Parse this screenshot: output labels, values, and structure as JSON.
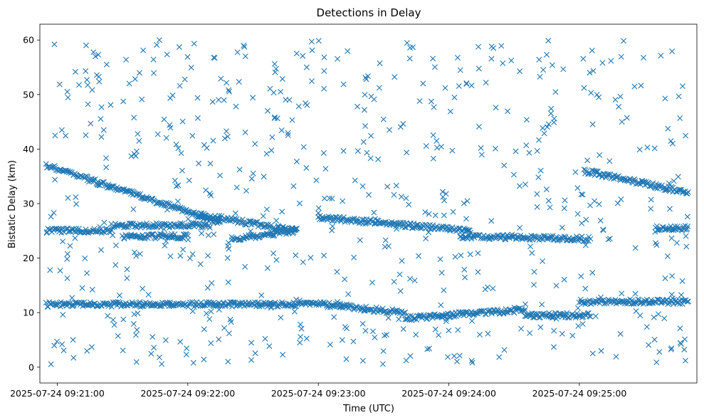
{
  "chart_data": {
    "type": "scatter",
    "title": "Detections in Delay",
    "xlabel": "Time (UTC)",
    "ylabel": "Bistatic Delay (km)",
    "marker": "x",
    "color": "#1f77b4",
    "grid": false,
    "legend": "none",
    "xlim": [
      "2025-07-24 09:20:52",
      "2025-07-24 09:25:54"
    ],
    "ylim": [
      -2.9,
      62.9
    ],
    "x_ticks": [
      "2025-07-24 09:21:00",
      "2025-07-24 09:22:00",
      "2025-07-24 09:23:00",
      "2025-07-24 09:24:00",
      "2025-07-24 09:25:00"
    ],
    "y_ticks": [
      0,
      10,
      20,
      30,
      40,
      50,
      60
    ],
    "time_range": [
      "2025-07-24 09:20:55",
      "2025-07-24 09:25:50"
    ],
    "tracks": [
      {
        "name": "",
        "start": "2025-07-24 09:20:55",
        "end": "2025-07-24 09:22:15",
        "y_start": 37.0,
        "y_end": 26.5
      },
      {
        "name": "",
        "start": "2025-07-24 09:22:05",
        "end": "2025-07-24 09:22:50",
        "y_start": 28.0,
        "y_end": 25.0
      },
      {
        "name": "",
        "start": "2025-07-24 09:23:00",
        "end": "2025-07-24 09:24:10",
        "y_start": 27.5,
        "y_end": 25.0
      },
      {
        "name": "",
        "start": "2025-07-24 09:25:02",
        "end": "2025-07-24 09:25:50",
        "y_start": 36.0,
        "y_end": 32.0
      },
      {
        "name": "",
        "start": "2025-07-24 09:20:55",
        "end": "2025-07-24 09:21:25",
        "y_start": 25.0,
        "y_end": 25.0
      },
      {
        "name": "",
        "start": "2025-07-24 09:21:25",
        "end": "2025-07-24 09:22:10",
        "y_start": 26.0,
        "y_end": 26.0
      },
      {
        "name": "",
        "start": "2025-07-24 09:21:30",
        "end": "2025-07-24 09:22:00",
        "y_start": 24.0,
        "y_end": 24.0
      },
      {
        "name": "",
        "start": "2025-07-24 09:22:20",
        "end": "2025-07-24 09:22:50",
        "y_start": 23.5,
        "y_end": 25.0
      },
      {
        "name": "",
        "start": "2025-07-24 09:24:05",
        "end": "2025-07-24 09:25:05",
        "y_start": 24.0,
        "y_end": 23.5
      },
      {
        "name": "",
        "start": "2025-07-24 09:25:35",
        "end": "2025-07-24 09:25:50",
        "y_start": 25.5,
        "y_end": 25.5
      },
      {
        "name": "",
        "start": "2025-07-24 09:20:55",
        "end": "2025-07-24 09:22:50",
        "y_start": 11.5,
        "y_end": 11.5
      },
      {
        "name": "",
        "start": "2025-07-24 09:22:50",
        "end": "2025-07-24 09:23:40",
        "y_start": 12.0,
        "y_end": 10.0
      },
      {
        "name": "",
        "start": "2025-07-24 09:23:40",
        "end": "2025-07-24 09:24:35",
        "y_start": 9.0,
        "y_end": 10.5
      },
      {
        "name": "",
        "start": "2025-07-24 09:24:35",
        "end": "2025-07-24 09:25:05",
        "y_start": 9.5,
        "y_end": 9.5
      },
      {
        "name": "",
        "start": "2025-07-24 09:25:00",
        "end": "2025-07-24 09:25:50",
        "y_start": 12.0,
        "y_end": 12.0
      }
    ],
    "noise": {
      "count": 650,
      "y_range": [
        0.5,
        60
      ]
    }
  }
}
